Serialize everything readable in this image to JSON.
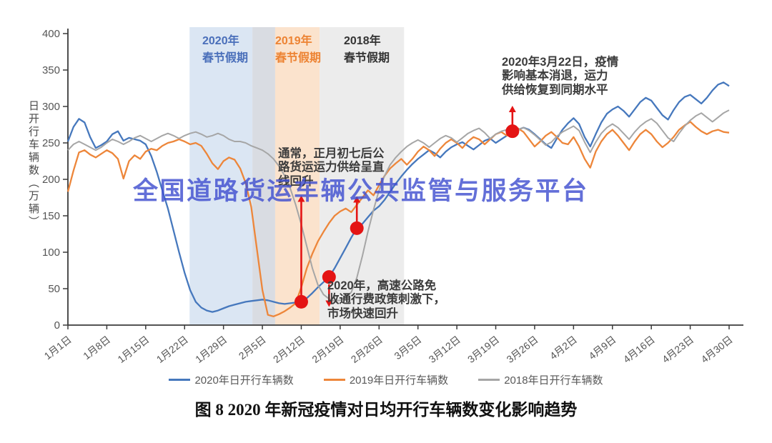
{
  "watermark": {
    "text": "全国道路货运车辆公共监管与服务平台",
    "color": "#4150d0"
  },
  "caption": {
    "text": "图 8 2020 年新冠疫情对日均开行车辆数变化影响趋势"
  },
  "holiday_labels": [
    {
      "text": "2020年\n春节假期",
      "color": "#4a6fba"
    },
    {
      "text": "2019年\n春节假期",
      "color": "#ed8333"
    },
    {
      "text": "2018年\n春节假期",
      "color": "#333333"
    }
  ],
  "annotations": [
    {
      "text": "通常，正月初七后公\n路货运运力供给呈直\n线回升"
    },
    {
      "text": "2020年，高速公路免\n收通行费政策刺激下，\n市场快速回升"
    },
    {
      "text": "2020年3月22日，疫情\n影响基本消退，运力\n供给恢复到同期水平"
    }
  ],
  "chart_data": {
    "type": "line",
    "title": "",
    "xlabel": "",
    "ylabel": "日开行车辆数（万辆）",
    "ylim": [
      0,
      400
    ],
    "y_ticks": [
      0,
      50,
      100,
      150,
      200,
      250,
      300,
      350,
      400
    ],
    "grid": false,
    "legend_position": "bottom",
    "days_total": 119,
    "x_tick_days": [
      0,
      7,
      14,
      21,
      28,
      35,
      42,
      49,
      56,
      63,
      70,
      77,
      84,
      91,
      98,
      105,
      112,
      119
    ],
    "x_tick_labels": [
      "1月1日",
      "1月8日",
      "1月15日",
      "1月22日",
      "1月29日",
      "2月5日",
      "2月12日",
      "2月19日",
      "2月26日",
      "3月5日",
      "3月12日",
      "3月19日",
      "3月26日",
      "4月2日",
      "4月9日",
      "4月16日",
      "4月23日",
      "4月30日"
    ],
    "bands": [
      {
        "from_day": 21.9,
        "to_day": 33.2,
        "color": "#dbe6f3"
      },
      {
        "from_day": 33.2,
        "to_day": 37.3,
        "color": "#d9dce2"
      },
      {
        "from_day": 37.3,
        "to_day": 45.3,
        "color": "#fbe3cd"
      },
      {
        "from_day": 45.3,
        "to_day": 60.5,
        "color": "#ececec"
      }
    ],
    "series": [
      {
        "name": "2020年日开行车辆数",
        "color": "#4678bd",
        "values": [
          252,
          272,
          283,
          278,
          258,
          243,
          247,
          252,
          262,
          266,
          253,
          257,
          255,
          253,
          248,
          232,
          210,
          185,
          160,
          130,
          100,
          72,
          48,
          32,
          24,
          20,
          18,
          20,
          23,
          26,
          28,
          30,
          32,
          33,
          34,
          35,
          34,
          32,
          30,
          29,
          30,
          31,
          32,
          37,
          44,
          52,
          59,
          66,
          78,
          92,
          106,
          120,
          133,
          139,
          148,
          157,
          163,
          172,
          183,
          194,
          204,
          213,
          221,
          228,
          234,
          240,
          236,
          230,
          238,
          244,
          248,
          251,
          246,
          241,
          247,
          253,
          256,
          250,
          255,
          260,
          266,
          268,
          271,
          268,
          262,
          255,
          248,
          243,
          256,
          268,
          277,
          284,
          276,
          258,
          245,
          262,
          278,
          290,
          296,
          300,
          294,
          286,
          296,
          306,
          312,
          308,
          298,
          288,
          282,
          295,
          306,
          313,
          316,
          310,
          304,
          312,
          322,
          330,
          333,
          328
        ]
      },
      {
        "name": "2019年日开行车辆数",
        "color": "#ed863a",
        "values": [
          183,
          212,
          237,
          240,
          234,
          230,
          235,
          240,
          236,
          228,
          201,
          225,
          233,
          228,
          238,
          242,
          240,
          246,
          250,
          252,
          255,
          252,
          248,
          250,
          246,
          235,
          222,
          214,
          225,
          230,
          227,
          215,
          195,
          162,
          105,
          48,
          14,
          12,
          15,
          19,
          24,
          30,
          52,
          78,
          98,
          115,
          128,
          140,
          150,
          156,
          160,
          155,
          165,
          175,
          185,
          178,
          192,
          205,
          215,
          222,
          228,
          220,
          228,
          238,
          245,
          240,
          232,
          242,
          250,
          255,
          250,
          243,
          252,
          258,
          255,
          248,
          255,
          262,
          265,
          260,
          266,
          270,
          265,
          255,
          245,
          252,
          260,
          265,
          258,
          250,
          248,
          258,
          245,
          228,
          216,
          238,
          252,
          262,
          268,
          260,
          250,
          240,
          252,
          262,
          268,
          262,
          252,
          244,
          250,
          258,
          268,
          274,
          279,
          272,
          266,
          262,
          266,
          268,
          265,
          264
        ]
      },
      {
        "name": "2018年日开行车辆数",
        "color": "#a6a6a6",
        "values": [
          240,
          248,
          252,
          248,
          244,
          240,
          244,
          250,
          255,
          252,
          248,
          252,
          257,
          260,
          256,
          252,
          256,
          260,
          263,
          260,
          256,
          260,
          263,
          265,
          262,
          258,
          260,
          263,
          260,
          255,
          252,
          252,
          250,
          246,
          243,
          240,
          235,
          228,
          218,
          205,
          188,
          165,
          138,
          108,
          78,
          55,
          42,
          36,
          33,
          34,
          38,
          45,
          65,
          95,
          128,
          158,
          185,
          205,
          220,
          230,
          238,
          245,
          250,
          254,
          250,
          244,
          250,
          256,
          260,
          257,
          251,
          257,
          263,
          267,
          270,
          264,
          256,
          262,
          266,
          268,
          266,
          268,
          271,
          267,
          261,
          254,
          247,
          251,
          259,
          265,
          269,
          273,
          267,
          251,
          237,
          251,
          263,
          271,
          276,
          271,
          263,
          255,
          265,
          273,
          279,
          283,
          277,
          267,
          257,
          252,
          263,
          273,
          281,
          287,
          291,
          285,
          279,
          285,
          291,
          295
        ]
      }
    ],
    "marker_color": "#e41414",
    "markers": [
      {
        "day": 42,
        "value": 32
      },
      {
        "day": 47,
        "value": 66
      },
      {
        "day": 52,
        "value": 133
      },
      {
        "day": 80,
        "value": 266
      }
    ],
    "arrows": [
      {
        "day": 42,
        "from_value": 38,
        "to_value": 178
      },
      {
        "day": 47,
        "from_value": 56,
        "to_value": 25
      },
      {
        "day": 52,
        "from_value": 140,
        "to_value": 177
      },
      {
        "day": 80,
        "from_value": 273,
        "to_value": 301
      }
    ]
  }
}
